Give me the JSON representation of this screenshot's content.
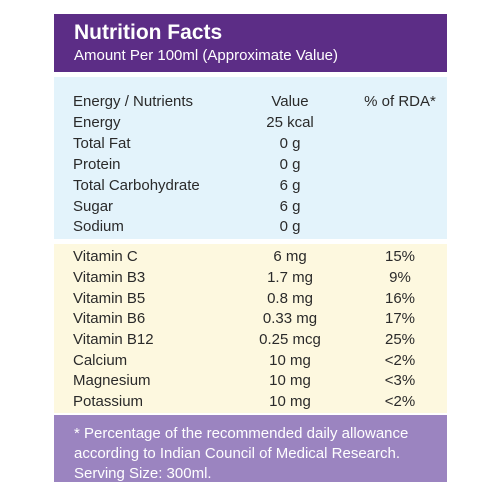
{
  "header": {
    "title": "Nutrition Facts",
    "subtitle": "Amount Per 100ml (Approximate Value)"
  },
  "columns": {
    "nutrient": "Energy / Nutrients",
    "value": "Value",
    "rda": "% of RDA*"
  },
  "nutrients": [
    {
      "name": "Energy",
      "value": "25 kcal",
      "rda": ""
    },
    {
      "name": "Total Fat",
      "value": "0 g",
      "rda": ""
    },
    {
      "name": "Protein",
      "value": "0 g",
      "rda": ""
    },
    {
      "name": "Total Carbohydrate",
      "value": "6 g",
      "rda": ""
    },
    {
      "name": "Sugar",
      "value": "6 g",
      "rda": ""
    },
    {
      "name": "Sodium",
      "value": "0 g",
      "rda": ""
    }
  ],
  "vitamins": [
    {
      "name": "Vitamin C",
      "value": "6 mg",
      "rda": "15%"
    },
    {
      "name": "Vitamin B3",
      "value": "1.7 mg",
      "rda": "9%"
    },
    {
      "name": "Vitamin B5",
      "value": "0.8 mg",
      "rda": "16%"
    },
    {
      "name": "Vitamin B6",
      "value": "0.33 mg",
      "rda": "17%"
    },
    {
      "name": "Vitamin B12",
      "value": "0.25 mcg",
      "rda": "25%"
    },
    {
      "name": "Calcium",
      "value": "10 mg",
      "rda": "<2%"
    },
    {
      "name": "Magnesium",
      "value": "10 mg",
      "rda": "<3%"
    },
    {
      "name": "Potassium",
      "value": "10 mg",
      "rda": "<2%"
    }
  ],
  "footer": {
    "line1": "* Percentage of the recommended daily allowance",
    "line2": "according to Indian Council of Medical Research.",
    "line3": "Serving Size: 300ml."
  }
}
